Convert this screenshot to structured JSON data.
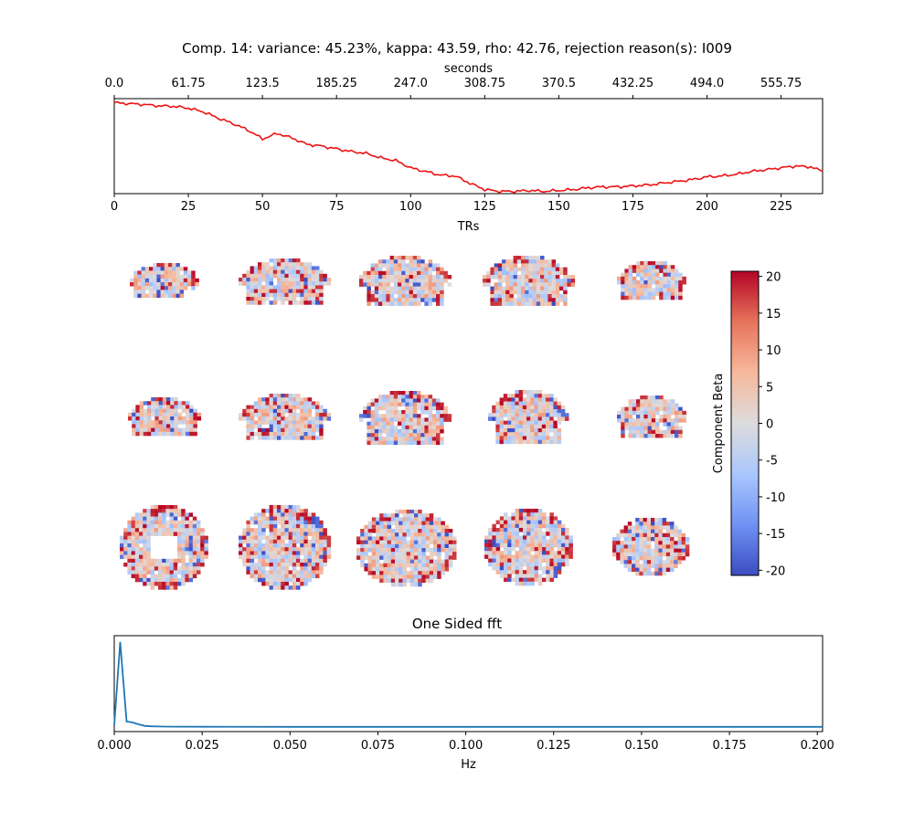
{
  "title": "Comp. 14: variance: 45.23%, kappa: 43.59, rho: 42.76, rejection reason(s): I009",
  "chart_data": [
    {
      "type": "line",
      "name": "timeseries",
      "color": "#ee1111",
      "xlabel": "TRs",
      "xlim": [
        0,
        239
      ],
      "x_ticks": [
        0,
        25,
        50,
        75,
        100,
        125,
        150,
        175,
        200,
        225
      ],
      "top_xlabel": "seconds",
      "top_ticks": [
        "0.0",
        "61.75",
        "123.5",
        "185.25",
        "247.0",
        "308.75",
        "370.5",
        "432.25",
        "494.0",
        "555.75"
      ],
      "ylim": [
        -1.05,
        1.05
      ],
      "points": [
        [
          0,
          0.96
        ],
        [
          5,
          0.94
        ],
        [
          10,
          0.92
        ],
        [
          15,
          0.89
        ],
        [
          20,
          0.88
        ],
        [
          25,
          0.84
        ],
        [
          30,
          0.76
        ],
        [
          35,
          0.62
        ],
        [
          40,
          0.5
        ],
        [
          45,
          0.36
        ],
        [
          50,
          0.16
        ],
        [
          55,
          0.28
        ],
        [
          60,
          0.18
        ],
        [
          65,
          0.04
        ],
        [
          70,
          0.0
        ],
        [
          75,
          -0.06
        ],
        [
          80,
          -0.12
        ],
        [
          85,
          -0.16
        ],
        [
          90,
          -0.26
        ],
        [
          95,
          -0.32
        ],
        [
          100,
          -0.48
        ],
        [
          105,
          -0.56
        ],
        [
          110,
          -0.64
        ],
        [
          115,
          -0.66
        ],
        [
          120,
          -0.82
        ],
        [
          125,
          -0.96
        ],
        [
          130,
          -1.0
        ],
        [
          135,
          -1.0
        ],
        [
          140,
          -0.98
        ],
        [
          145,
          -1.0
        ],
        [
          150,
          -0.98
        ],
        [
          155,
          -0.96
        ],
        [
          160,
          -0.92
        ],
        [
          165,
          -0.9
        ],
        [
          170,
          -0.9
        ],
        [
          175,
          -0.88
        ],
        [
          180,
          -0.86
        ],
        [
          185,
          -0.82
        ],
        [
          190,
          -0.78
        ],
        [
          195,
          -0.74
        ],
        [
          200,
          -0.68
        ],
        [
          205,
          -0.66
        ],
        [
          210,
          -0.62
        ],
        [
          215,
          -0.56
        ],
        [
          220,
          -0.52
        ],
        [
          225,
          -0.48
        ],
        [
          230,
          -0.44
        ],
        [
          235,
          -0.46
        ],
        [
          239,
          -0.56
        ]
      ]
    },
    {
      "type": "heatmap",
      "name": "component-beta-maps",
      "rows": 3,
      "columns": 5,
      "colorbar_label": "Component Beta",
      "colorbar_range": [
        -20.7,
        20.7
      ],
      "colorbar_ticks": [
        20,
        15,
        10,
        5,
        0,
        -5,
        -10,
        -15,
        -20
      ],
      "colormap": "coolwarm",
      "colormap_stops": [
        "#3b4cc0",
        "#6f92f3",
        "#aac7fd",
        "#dddcdc",
        "#f7b89c",
        "#e7745b",
        "#b40426"
      ]
    },
    {
      "type": "line",
      "name": "fft",
      "title": "One Sided fft",
      "color": "#1f77b4",
      "xlabel": "Hz",
      "xlim": [
        0,
        0.2015
      ],
      "x_ticks": [
        "0.000",
        "0.025",
        "0.050",
        "0.075",
        "0.100",
        "0.125",
        "0.150",
        "0.175",
        "0.200"
      ],
      "ylim": [
        0,
        1.0
      ],
      "points": [
        [
          0.0,
          0.02
        ],
        [
          0.0017,
          0.93
        ],
        [
          0.0035,
          0.06
        ],
        [
          0.0052,
          0.05
        ],
        [
          0.0069,
          0.03
        ],
        [
          0.0087,
          0.012
        ],
        [
          0.0104,
          0.008
        ],
        [
          0.0121,
          0.006
        ],
        [
          0.0139,
          0.005
        ],
        [
          0.017,
          0.004
        ],
        [
          0.025,
          0.003
        ],
        [
          0.05,
          0.002
        ],
        [
          0.1,
          0.002
        ],
        [
          0.15,
          0.002
        ],
        [
          0.2015,
          0.002
        ]
      ]
    }
  ]
}
